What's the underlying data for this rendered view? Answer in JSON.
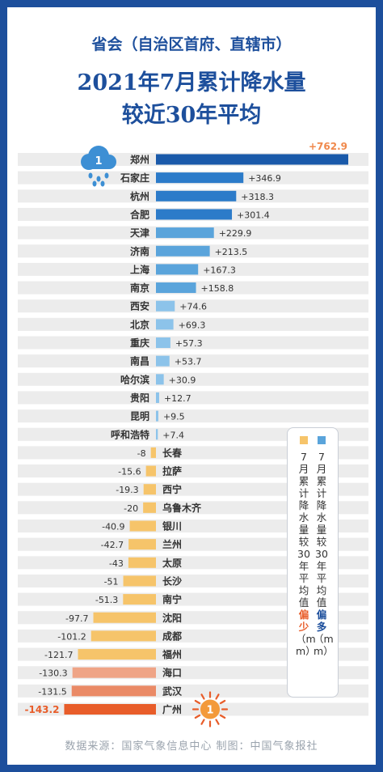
{
  "title": {
    "line1": "省会（自治区首府、直辖市）",
    "line2": "2021年7月累计降水量",
    "line3": "较近30年平均"
  },
  "footer": "数据来源：国家气象信息中心   制图：中国气象报社",
  "legend": {
    "more_text": "7月累计降水量较30年平均值",
    "more_em": "偏多",
    "more_unit": "（mm）",
    "less_text": "7月累计降水量较30年平均值",
    "less_em": "偏少",
    "less_unit": "（mm）"
  },
  "badges": {
    "top": "1",
    "bottom": "1"
  },
  "colors": {
    "frame": "#1d4f9c",
    "title": "#1d4f9c",
    "pos_dark": "#1a5aaa",
    "pos_mid": "#2c7bc9",
    "pos_light": "#5aa4db",
    "pos_pale": "#8cc3ea",
    "neg_yellow": "#f6c46a",
    "neg_peach": "#efa486",
    "neg_salmon": "#ea8a66",
    "neg_red": "#e85d2a",
    "max_label": "#f0894c",
    "row_band": "#ececec"
  },
  "chart_data": {
    "type": "bar",
    "orientation": "horizontal",
    "unit": "mm",
    "categories": [
      "郑州",
      "石家庄",
      "杭州",
      "合肥",
      "天津",
      "济南",
      "上海",
      "南京",
      "西安",
      "北京",
      "重庆",
      "南昌",
      "哈尔滨",
      "贵阳",
      "昆明",
      "呼和浩特",
      "长春",
      "拉萨",
      "西宁",
      "乌鲁木齐",
      "银川",
      "兰州",
      "太原",
      "长沙",
      "南宁",
      "沈阳",
      "成都",
      "福州",
      "海口",
      "武汉",
      "广州"
    ],
    "values": [
      762.9,
      346.9,
      318.3,
      301.4,
      229.9,
      213.5,
      167.3,
      158.8,
      74.6,
      69.3,
      57.3,
      53.7,
      30.9,
      12.7,
      9.5,
      7.4,
      -8,
      -15.6,
      -19.3,
      -20,
      -40.9,
      -42.7,
      -43,
      -51,
      -51.3,
      -97.7,
      -101.2,
      -121.7,
      -130.3,
      -131.5,
      -143.2
    ],
    "labels": [
      "+762.9",
      "+346.9",
      "+318.3",
      "+301.4",
      "+229.9",
      "+213.5",
      "+167.3",
      "+158.8",
      "+74.6",
      "+69.3",
      "+57.3",
      "+53.7",
      "+30.9",
      "+12.7",
      "+9.5",
      "+7.4",
      "-8",
      "-15.6",
      "-19.3",
      "-20",
      "-40.9",
      "-42.7",
      "-43",
      "-51",
      "-51.3",
      "-97.7",
      "-101.2",
      "-121.7",
      "-130.3",
      "-131.5",
      "-143.2"
    ],
    "series": [
      {
        "name": "7月累计降水量较30年平均值偏多（mm）"
      },
      {
        "name": "7月累计降水量较30年平均值偏少（mm）"
      }
    ],
    "xlabel": "",
    "ylabel": "",
    "grid": false,
    "legend_position": "right"
  }
}
